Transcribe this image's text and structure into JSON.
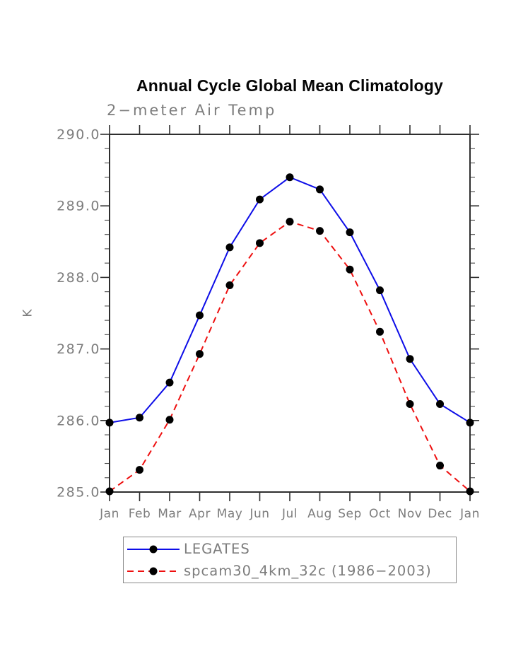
{
  "chart": {
    "title": "Annual Cycle Global Mean Climatology",
    "subtitle": "2−meter Air Temp",
    "y_unit": "K"
  },
  "chart_data": {
    "type": "line",
    "title": "Annual Cycle Global Mean Climatology",
    "subtitle": "2−meter Air Temp",
    "xlabel": "",
    "ylabel": "K",
    "ylim": [
      285.0,
      290.0
    ],
    "y_tick_labels": [
      "285.0",
      "286.0",
      "287.0",
      "288.0",
      "289.0",
      "290.0"
    ],
    "y_major_ticks": [
      285.0,
      286.0,
      287.0,
      288.0,
      289.0,
      290.0
    ],
    "y_minor_step": 0.2,
    "grid": false,
    "legend_position": "bottom",
    "categories": [
      "Jan",
      "Feb",
      "Mar",
      "Apr",
      "May",
      "Jun",
      "Jul",
      "Aug",
      "Sep",
      "Oct",
      "Nov",
      "Dec",
      "Jan"
    ],
    "series": [
      {
        "name": "LEGATES",
        "color": "#0d0de8",
        "line_style": "solid",
        "marker": "circle",
        "marker_color": "#000000",
        "values": [
          285.97,
          286.04,
          286.53,
          287.47,
          288.42,
          289.09,
          289.4,
          289.23,
          288.63,
          287.82,
          286.86,
          286.23,
          285.97
        ]
      },
      {
        "name": "spcam30_4km_32c (1986−2003)",
        "color": "#ee0f0f",
        "line_style": "dashed",
        "marker": "circle",
        "marker_color": "#000000",
        "values": [
          285.01,
          285.31,
          286.01,
          286.93,
          287.89,
          288.48,
          288.78,
          288.65,
          288.11,
          287.24,
          286.23,
          285.37,
          285.01
        ]
      }
    ]
  }
}
